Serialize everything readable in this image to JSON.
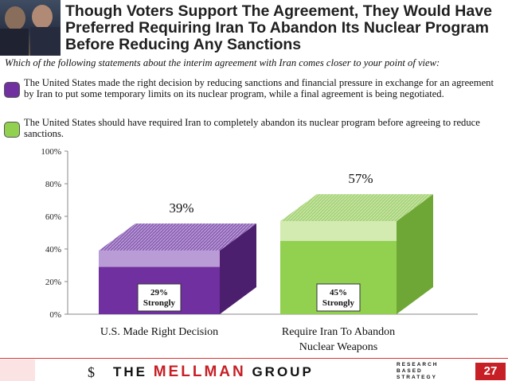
{
  "title": "Though Voters Support The Agreement, They Would Have Preferred Requiring Iran To Abandon Its Nuclear Program Before Reducing Any Sanctions",
  "question": "Which of the following statements about the interim agreement with Iran comes closer to your point of view:",
  "options": [
    {
      "text": "The United States made the right decision by reducing sanctions and financial pressure in exchange for an agreement by Iran to put some temporary limits on its nuclear program, while a final agreement is being negotiated.",
      "color": "#7030a0"
    },
    {
      "text": "The United States should have required Iran to completely abandon its nuclear program before agreeing to reduce sanctions.",
      "color": "#92d050"
    }
  ],
  "chart_data": {
    "type": "bar",
    "categories": [
      "U.S. Made Right Decision",
      "Require Iran To Abandon Nuclear Weapons"
    ],
    "total_labels": [
      "39%",
      "57%"
    ],
    "strongly_labels": [
      "29%\nStrongly",
      "45%\nStrongly"
    ],
    "series": [
      {
        "name": "Strongly",
        "values": [
          29,
          45
        ]
      },
      {
        "name": "Total",
        "values": [
          39,
          57
        ]
      }
    ],
    "colors": {
      "a_front": "#7030a0",
      "a_side": "#4c1f6e",
      "a_light": "#b99bd5",
      "b_front": "#92d050",
      "b_side": "#6ea736",
      "b_light": "#d3ebb0"
    },
    "yticks": [
      "0%",
      "20%",
      "40%",
      "60%",
      "80%",
      "100%"
    ],
    "ylim": [
      0,
      100
    ]
  },
  "footer": {
    "logo_mark": "$",
    "logo_the": "THE ",
    "logo_brand": "MELLMAN",
    "logo_group": " GROUP",
    "tagline": [
      "RESEARCH",
      "BASED",
      "STRATEGY"
    ],
    "page_number": "27"
  }
}
